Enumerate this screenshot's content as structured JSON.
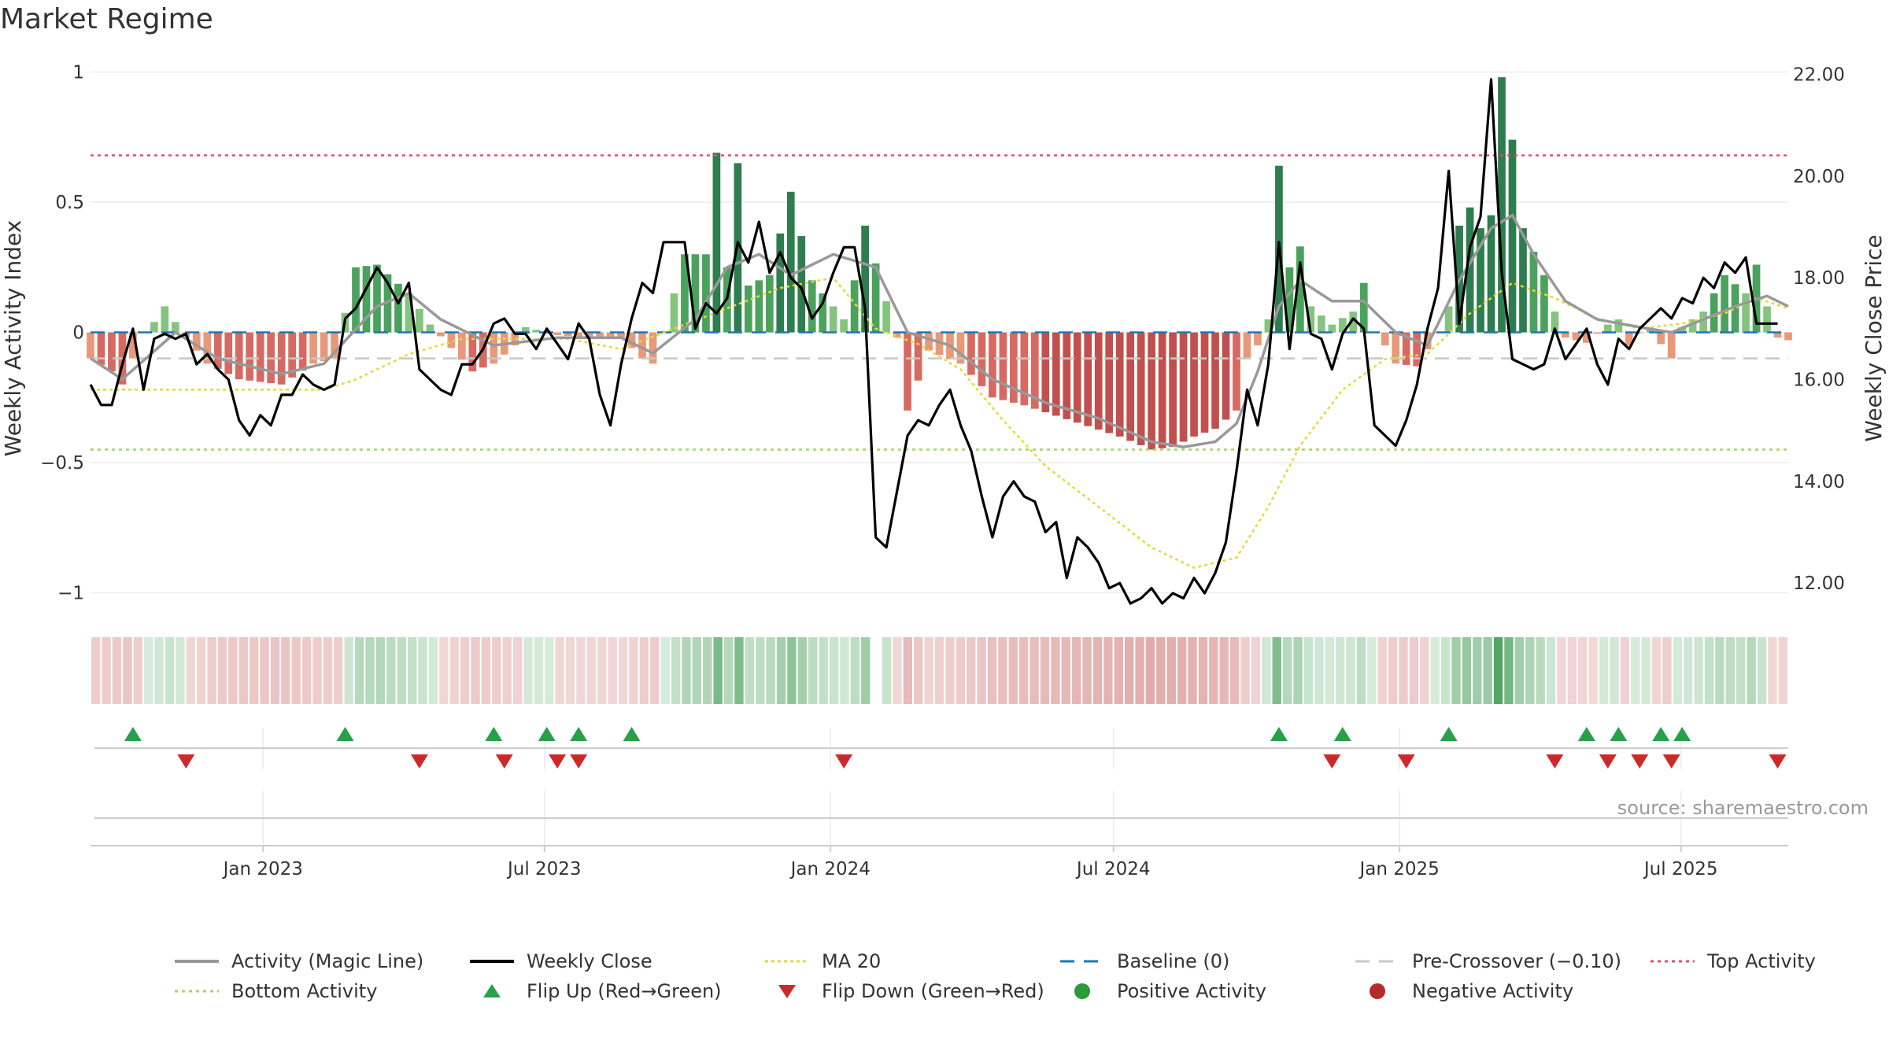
{
  "title": "Market Regime",
  "source_text": "source: sharemaestro.com",
  "chart_data": {
    "type": "bar",
    "title": "Market Regime",
    "ylabel_left": "Weekly Activity Index",
    "ylabel_right": "Weekly Close Price",
    "ylim_left": [
      -1.08,
      1.05
    ],
    "ylim_right": [
      11.4,
      22.3
    ],
    "yticks_left": [
      {
        "v": 1,
        "label": "1"
      },
      {
        "v": 0.5,
        "label": "0.5"
      },
      {
        "v": 0,
        "label": "0"
      },
      {
        "v": -0.5,
        "label": "−0.5"
      },
      {
        "v": -1,
        "label": "−1"
      }
    ],
    "yticks_right": [
      {
        "v": 22,
        "label": "22.00"
      },
      {
        "v": 20,
        "label": "20.00"
      },
      {
        "v": 18,
        "label": "18.00"
      },
      {
        "v": 16,
        "label": "16.00"
      },
      {
        "v": 14,
        "label": "14.00"
      },
      {
        "v": 12,
        "label": "12.00"
      }
    ],
    "x_start": "2022-09-12",
    "x_end": "2025-09-08",
    "xticks": [
      {
        "date": "2023-01-01",
        "label": "Jan 2023"
      },
      {
        "date": "2023-07-01",
        "label": "Jul 2023"
      },
      {
        "date": "2024-01-01",
        "label": "Jan 2024"
      },
      {
        "date": "2024-07-01",
        "label": "Jul 2024"
      },
      {
        "date": "2025-01-01",
        "label": "Jan 2025"
      },
      {
        "date": "2025-07-01",
        "label": "Jul 2025"
      }
    ],
    "reference_lines": {
      "top_activity": 0.68,
      "bottom_activity": -0.45,
      "baseline": 0,
      "pre_crossover": -0.1
    },
    "series": [
      {
        "name": "Activity (Magic Line)",
        "key": "magic",
        "axis": "left",
        "color": "#999999"
      },
      {
        "name": "Weekly Close",
        "key": "close",
        "axis": "right",
        "color": "#000000"
      },
      {
        "name": "MA 20",
        "key": "ma20",
        "axis": "right",
        "color": "#e8d839"
      }
    ],
    "activity_keypoints": [
      [
        0,
        -0.1
      ],
      [
        2,
        -0.15
      ],
      [
        3,
        -0.2
      ],
      [
        5,
        0.0
      ],
      [
        6,
        0.04
      ],
      [
        7,
        0.1
      ],
      [
        9,
        -0.02
      ],
      [
        11,
        -0.12
      ],
      [
        14,
        -0.18
      ],
      [
        18,
        -0.2
      ],
      [
        21,
        -0.12
      ],
      [
        23,
        -0.1
      ],
      [
        25,
        0.25
      ],
      [
        27,
        0.26
      ],
      [
        30,
        0.15
      ],
      [
        32,
        0.03
      ],
      [
        34,
        -0.06
      ],
      [
        36,
        -0.15
      ],
      [
        38,
        -0.12
      ],
      [
        40,
        -0.05
      ],
      [
        41,
        0.02
      ],
      [
        44,
        -0.01
      ],
      [
        47,
        -0.02
      ],
      [
        50,
        -0.02
      ],
      [
        52,
        -0.1
      ],
      [
        53,
        -0.12
      ],
      [
        54,
        0.0
      ],
      [
        56,
        0.3
      ],
      [
        58,
        0.3
      ],
      [
        59,
        0.69
      ],
      [
        60,
        0.25
      ],
      [
        61,
        0.65
      ],
      [
        62,
        0.18
      ],
      [
        64,
        0.22
      ],
      [
        66,
        0.54
      ],
      [
        68,
        0.2
      ],
      [
        70,
        0.1
      ],
      [
        71,
        0.05
      ],
      [
        72,
        0.2
      ],
      [
        73,
        0.41
      ],
      [
        75,
        0.12
      ],
      [
        76,
        -0.02
      ],
      [
        77,
        -0.3
      ],
      [
        79,
        -0.07
      ],
      [
        82,
        -0.12
      ],
      [
        85,
        -0.25
      ],
      [
        88,
        -0.28
      ],
      [
        91,
        -0.32
      ],
      [
        94,
        -0.36
      ],
      [
        97,
        -0.4
      ],
      [
        100,
        -0.45
      ],
      [
        102,
        -0.44
      ],
      [
        104,
        -0.4
      ],
      [
        106,
        -0.37
      ],
      [
        108,
        -0.3
      ],
      [
        109,
        -0.1
      ],
      [
        110,
        -0.05
      ],
      [
        111,
        0.05
      ],
      [
        112,
        0.64
      ],
      [
        113,
        0.25
      ],
      [
        114,
        0.33
      ],
      [
        115,
        0.1
      ],
      [
        117,
        0.03
      ],
      [
        119,
        0.08
      ],
      [
        120,
        0.19
      ],
      [
        121,
        0.0
      ],
      [
        122,
        -0.05
      ],
      [
        123,
        -0.12
      ],
      [
        125,
        -0.13
      ],
      [
        127,
        0.0
      ],
      [
        128,
        0.1
      ],
      [
        129,
        0.41
      ],
      [
        130,
        0.48
      ],
      [
        131,
        0.4
      ],
      [
        132,
        0.45
      ],
      [
        133,
        0.98
      ],
      [
        134,
        0.74
      ],
      [
        135,
        0.4
      ],
      [
        137,
        0.22
      ],
      [
        138,
        0.08
      ],
      [
        139,
        -0.02
      ],
      [
        141,
        -0.04
      ],
      [
        143,
        0.03
      ],
      [
        144,
        0.05
      ],
      [
        145,
        -0.05
      ],
      [
        146,
        0.0
      ],
      [
        147,
        0.01
      ],
      [
        149,
        -0.1
      ],
      [
        150,
        0.02
      ],
      [
        152,
        0.08
      ],
      [
        154,
        0.22
      ],
      [
        156,
        0.15
      ],
      [
        157,
        0.26
      ],
      [
        158,
        0.1
      ],
      [
        159,
        -0.02
      ],
      [
        160,
        -0.03
      ]
    ],
    "magic_keypoints": [
      [
        0,
        -0.1
      ],
      [
        3,
        -0.18
      ],
      [
        8,
        0.0
      ],
      [
        12,
        -0.1
      ],
      [
        18,
        -0.16
      ],
      [
        22,
        -0.12
      ],
      [
        27,
        0.1
      ],
      [
        30,
        0.15
      ],
      [
        33,
        0.05
      ],
      [
        38,
        -0.05
      ],
      [
        44,
        -0.02
      ],
      [
        50,
        -0.02
      ],
      [
        53,
        -0.08
      ],
      [
        57,
        0.05
      ],
      [
        60,
        0.25
      ],
      [
        63,
        0.3
      ],
      [
        66,
        0.22
      ],
      [
        70,
        0.3
      ],
      [
        74,
        0.25
      ],
      [
        77,
        0.0
      ],
      [
        81,
        -0.05
      ],
      [
        85,
        -0.18
      ],
      [
        90,
        -0.27
      ],
      [
        95,
        -0.33
      ],
      [
        100,
        -0.42
      ],
      [
        103,
        -0.44
      ],
      [
        106,
        -0.42
      ],
      [
        108,
        -0.35
      ],
      [
        110,
        -0.15
      ],
      [
        112,
        0.1
      ],
      [
        114,
        0.2
      ],
      [
        117,
        0.12
      ],
      [
        120,
        0.12
      ],
      [
        123,
        0.0
      ],
      [
        126,
        -0.05
      ],
      [
        129,
        0.2
      ],
      [
        132,
        0.4
      ],
      [
        134,
        0.45
      ],
      [
        136,
        0.3
      ],
      [
        139,
        0.12
      ],
      [
        142,
        0.05
      ],
      [
        146,
        0.02
      ],
      [
        149,
        0.0
      ],
      [
        152,
        0.05
      ],
      [
        155,
        0.1
      ],
      [
        158,
        0.14
      ],
      [
        160,
        0.1
      ]
    ],
    "close_keypoints": [
      [
        0,
        15.9
      ],
      [
        1,
        15.5
      ],
      [
        2,
        15.5
      ],
      [
        3,
        16.3
      ],
      [
        4,
        17.0
      ],
      [
        5,
        15.8
      ],
      [
        6,
        16.8
      ],
      [
        7,
        16.9
      ],
      [
        8,
        16.8
      ],
      [
        9,
        16.9
      ],
      [
        10,
        16.3
      ],
      [
        11,
        16.5
      ],
      [
        12,
        16.2
      ],
      [
        13,
        16.0
      ],
      [
        14,
        15.2
      ],
      [
        15,
        14.9
      ],
      [
        16,
        15.3
      ],
      [
        17,
        15.1
      ],
      [
        18,
        15.7
      ],
      [
        19,
        15.7
      ],
      [
        20,
        16.1
      ],
      [
        21,
        15.9
      ],
      [
        22,
        15.8
      ],
      [
        23,
        15.9
      ],
      [
        24,
        17.2
      ],
      [
        25,
        17.4
      ],
      [
        26,
        17.8
      ],
      [
        27,
        18.2
      ],
      [
        28,
        17.9
      ],
      [
        29,
        17.5
      ],
      [
        30,
        17.9
      ],
      [
        31,
        16.2
      ],
      [
        32,
        16.0
      ],
      [
        33,
        15.8
      ],
      [
        34,
        15.7
      ],
      [
        35,
        16.3
      ],
      [
        36,
        16.3
      ],
      [
        37,
        16.6
      ],
      [
        38,
        17.1
      ],
      [
        39,
        17.2
      ],
      [
        40,
        16.9
      ],
      [
        41,
        16.9
      ],
      [
        42,
        16.6
      ],
      [
        43,
        17.0
      ],
      [
        44,
        16.7
      ],
      [
        45,
        16.4
      ],
      [
        46,
        17.1
      ],
      [
        47,
        16.8
      ],
      [
        48,
        15.7
      ],
      [
        49,
        15.1
      ],
      [
        50,
        16.3
      ],
      [
        51,
        17.2
      ],
      [
        52,
        17.9
      ],
      [
        53,
        17.7
      ],
      [
        54,
        18.7
      ],
      [
        55,
        18.7
      ],
      [
        56,
        18.7
      ],
      [
        57,
        17.0
      ],
      [
        58,
        17.5
      ],
      [
        59,
        17.3
      ],
      [
        60,
        17.6
      ],
      [
        61,
        18.7
      ],
      [
        62,
        18.3
      ],
      [
        63,
        19.1
      ],
      [
        64,
        18.1
      ],
      [
        65,
        18.5
      ],
      [
        66,
        18.0
      ],
      [
        67,
        17.8
      ],
      [
        68,
        17.2
      ],
      [
        69,
        17.5
      ],
      [
        70,
        18.1
      ],
      [
        71,
        18.6
      ],
      [
        72,
        18.6
      ],
      [
        73,
        17.4
      ],
      [
        74,
        12.9
      ],
      [
        75,
        12.7
      ],
      [
        76,
        13.8
      ],
      [
        77,
        14.9
      ],
      [
        78,
        15.2
      ],
      [
        79,
        15.1
      ],
      [
        80,
        15.5
      ],
      [
        81,
        15.8
      ],
      [
        82,
        15.1
      ],
      [
        83,
        14.6
      ],
      [
        84,
        13.7
      ],
      [
        85,
        12.9
      ],
      [
        86,
        13.7
      ],
      [
        87,
        14.0
      ],
      [
        88,
        13.7
      ],
      [
        89,
        13.6
      ],
      [
        90,
        13.0
      ],
      [
        91,
        13.2
      ],
      [
        92,
        12.1
      ],
      [
        93,
        12.9
      ],
      [
        94,
        12.7
      ],
      [
        95,
        12.4
      ],
      [
        96,
        11.9
      ],
      [
        97,
        12.0
      ],
      [
        98,
        11.6
      ],
      [
        99,
        11.7
      ],
      [
        100,
        11.9
      ],
      [
        101,
        11.6
      ],
      [
        102,
        11.8
      ],
      [
        103,
        11.7
      ],
      [
        104,
        12.1
      ],
      [
        105,
        11.8
      ],
      [
        106,
        12.2
      ],
      [
        107,
        12.8
      ],
      [
        108,
        14.2
      ],
      [
        109,
        15.8
      ],
      [
        110,
        15.1
      ],
      [
        111,
        16.3
      ],
      [
        112,
        18.7
      ],
      [
        113,
        16.6
      ],
      [
        114,
        18.3
      ],
      [
        115,
        16.9
      ],
      [
        116,
        16.8
      ],
      [
        117,
        16.2
      ],
      [
        118,
        16.9
      ],
      [
        119,
        17.2
      ],
      [
        120,
        17.0
      ],
      [
        121,
        15.1
      ],
      [
        122,
        14.9
      ],
      [
        123,
        14.7
      ],
      [
        124,
        15.2
      ],
      [
        125,
        15.9
      ],
      [
        126,
        17.0
      ],
      [
        127,
        17.8
      ],
      [
        128,
        20.1
      ],
      [
        129,
        17.1
      ],
      [
        130,
        18.6
      ],
      [
        131,
        19.2
      ],
      [
        132,
        21.9
      ],
      [
        133,
        18.1
      ],
      [
        134,
        16.4
      ],
      [
        135,
        16.3
      ],
      [
        136,
        16.2
      ],
      [
        137,
        16.3
      ],
      [
        138,
        17.0
      ],
      [
        139,
        16.4
      ],
      [
        140,
        16.7
      ],
      [
        141,
        17.0
      ],
      [
        142,
        16.3
      ],
      [
        143,
        15.9
      ],
      [
        144,
        16.8
      ],
      [
        145,
        16.6
      ],
      [
        146,
        17.0
      ],
      [
        147,
        17.2
      ],
      [
        148,
        17.4
      ],
      [
        149,
        17.2
      ],
      [
        150,
        17.6
      ],
      [
        151,
        17.5
      ],
      [
        152,
        18.0
      ],
      [
        153,
        17.8
      ],
      [
        154,
        18.3
      ],
      [
        155,
        18.1
      ],
      [
        156,
        18.4
      ],
      [
        157,
        17.1
      ],
      [
        158,
        17.1
      ],
      [
        159,
        17.1
      ]
    ],
    "ma20_keypoints": [
      [
        0,
        15.8
      ],
      [
        5,
        15.8
      ],
      [
        10,
        15.8
      ],
      [
        16,
        15.8
      ],
      [
        22,
        15.8
      ],
      [
        25,
        16.0
      ],
      [
        30,
        16.5
      ],
      [
        35,
        16.8
      ],
      [
        40,
        16.8
      ],
      [
        45,
        16.8
      ],
      [
        50,
        16.6
      ],
      [
        55,
        17.0
      ],
      [
        60,
        17.4
      ],
      [
        65,
        17.8
      ],
      [
        70,
        18.0
      ],
      [
        74,
        17.0
      ],
      [
        78,
        16.7
      ],
      [
        82,
        16.2
      ],
      [
        86,
        15.2
      ],
      [
        90,
        14.3
      ],
      [
        95,
        13.5
      ],
      [
        100,
        12.7
      ],
      [
        104,
        12.3
      ],
      [
        108,
        12.5
      ],
      [
        111,
        13.5
      ],
      [
        114,
        14.7
      ],
      [
        118,
        15.8
      ],
      [
        122,
        16.4
      ],
      [
        126,
        16.5
      ],
      [
        130,
        17.3
      ],
      [
        134,
        17.9
      ],
      [
        138,
        17.6
      ],
      [
        142,
        17.2
      ],
      [
        146,
        17.0
      ],
      [
        150,
        17.1
      ],
      [
        154,
        17.3
      ],
      [
        157,
        17.6
      ],
      [
        160,
        17.4
      ]
    ],
    "flip_up_weeks": [
      4,
      24,
      38,
      43,
      46,
      51,
      112,
      118,
      128,
      141,
      144,
      148,
      150
    ],
    "flip_down_weeks": [
      9,
      31,
      39,
      44,
      46,
      71,
      117,
      124,
      138,
      143,
      146,
      149,
      159
    ],
    "strip_gap_weeks": [
      74
    ],
    "colors": {
      "green_dark": "#2e7d4f",
      "green_mid": "#4aa25c",
      "green_light": "#85c47e",
      "red_dark": "#c0504d",
      "red_mid": "#d66a62",
      "red_light": "#e9987a",
      "top_line": "#e0506e",
      "bottom_line": "#a5d65c",
      "baseline": "#1f77b4",
      "precross": "#c8c8c8",
      "flip_up": "#28a049",
      "flip_down": "#cc2a2a",
      "positive_dot": "#2a9a3a",
      "negative_dot": "#b22a2a"
    },
    "legend": [
      {
        "label": "Activity (Magic Line)",
        "glyph": "line-gray"
      },
      {
        "label": "Weekly Close",
        "glyph": "line-black"
      },
      {
        "label": "MA 20",
        "glyph": "line-yellow-dotted"
      },
      {
        "label": "Baseline (0)",
        "glyph": "line-blue-dashed"
      },
      {
        "label": "Pre-Crossover (−0.10)",
        "glyph": "line-gray-dashed"
      },
      {
        "label": "Top Activity",
        "glyph": "line-red-dotted"
      },
      {
        "label": "Bottom Activity",
        "glyph": "line-green-dotted"
      },
      {
        "label": "Flip Up (Red→Green)",
        "glyph": "triangle-up-green"
      },
      {
        "label": "Flip Down (Green→Red)",
        "glyph": "triangle-down-red"
      },
      {
        "label": "Positive Activity",
        "glyph": "dot-green"
      },
      {
        "label": "Negative Activity",
        "glyph": "dot-red"
      }
    ]
  }
}
